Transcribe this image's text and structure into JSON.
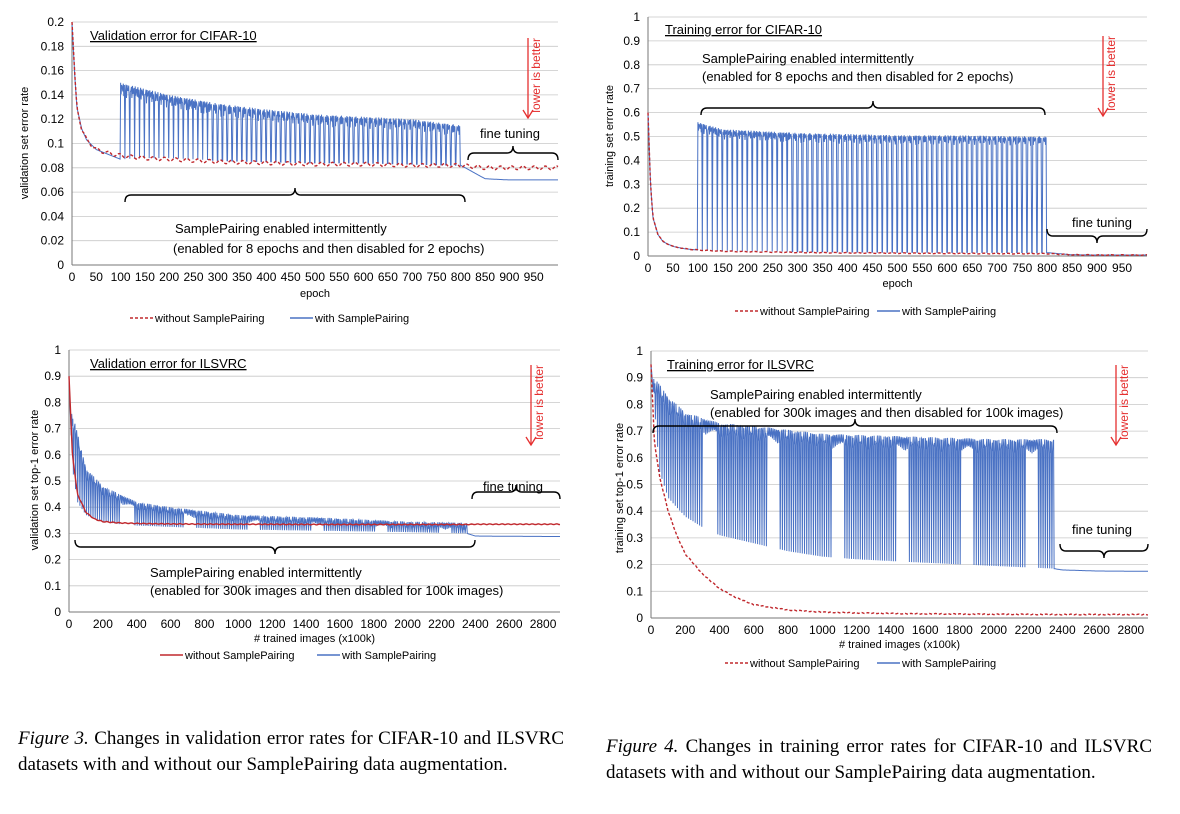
{
  "chart_data": [
    {
      "type": "line",
      "title": "Validation error for CIFAR-10",
      "xlabel": "epoch",
      "ylabel": "validation set error rate",
      "xlim": [
        0,
        1000
      ],
      "ylim": [
        0,
        0.2
      ],
      "x_ticks": [
        0,
        50,
        100,
        150,
        200,
        250,
        300,
        350,
        400,
        450,
        500,
        550,
        600,
        650,
        700,
        750,
        800,
        850,
        900,
        950
      ],
      "y_ticks": [
        0,
        0.02,
        0.04,
        0.06,
        0.08,
        0.1,
        0.12,
        0.14,
        0.16,
        0.18,
        0.2
      ],
      "series": [
        {
          "name": "without SamplePairing",
          "style": "dashed",
          "color": "#c0282d",
          "x": [
            0,
            5,
            10,
            20,
            30,
            50,
            75,
            100,
            150,
            200,
            300,
            400,
            500,
            600,
            700,
            800,
            850,
            900,
            950,
            1000
          ],
          "y": [
            0.2,
            0.16,
            0.13,
            0.112,
            0.103,
            0.095,
            0.092,
            0.09,
            0.088,
            0.087,
            0.085,
            0.084,
            0.083,
            0.083,
            0.082,
            0.082,
            0.08,
            0.08,
            0.08,
            0.08
          ]
        },
        {
          "name": "with SamplePairing",
          "style": "solid",
          "color": "#4a72c4",
          "x": [
            0,
            5,
            10,
            20,
            30,
            50,
            75,
            100,
            150,
            200,
            300,
            400,
            500,
            600,
            700,
            800,
            850,
            900,
            950,
            1000
          ],
          "y": [
            0.2,
            0.16,
            0.13,
            0.112,
            0.103,
            0.095,
            0.091,
            0.087,
            0.088,
            0.088,
            0.086,
            0.085,
            0.084,
            0.084,
            0.083,
            0.082,
            0.071,
            0.07,
            0.07,
            0.07
          ],
          "spike_peaks": {
            "x": [
              100,
              150,
              200,
              300,
              400,
              500,
              600,
              700,
              800
            ],
            "y": [
              0.15,
              0.145,
              0.14,
              0.133,
              0.128,
              0.124,
              0.122,
              0.12,
              0.115
            ]
          }
        }
      ],
      "annotations": {
        "intermittent_label": "SamplePairing enabled intermittently",
        "intermittent_detail": "(enabled for 8 epochs and then disabled for 2 epochs)",
        "fine_tuning": "fine tuning",
        "lower_is_better": "lower is better"
      },
      "grid": true,
      "legend": "bottom"
    },
    {
      "type": "line",
      "title": "Training error for CIFAR-10",
      "xlabel": "epoch",
      "ylabel": "training set error rate",
      "xlim": [
        0,
        1000
      ],
      "ylim": [
        0,
        1
      ],
      "x_ticks": [
        0,
        50,
        100,
        150,
        200,
        250,
        300,
        350,
        400,
        450,
        500,
        550,
        600,
        650,
        700,
        750,
        800,
        850,
        900,
        950
      ],
      "y_ticks": [
        0,
        0.1,
        0.2,
        0.3,
        0.4,
        0.5,
        0.6,
        0.7,
        0.8,
        0.9,
        1
      ],
      "series": [
        {
          "name": "without SamplePairing",
          "style": "dashed",
          "color": "#c0282d",
          "x": [
            0,
            5,
            10,
            20,
            30,
            50,
            75,
            100,
            150,
            200,
            300,
            400,
            500,
            600,
            700,
            800,
            850,
            900,
            950,
            1000
          ],
          "y": [
            0.6,
            0.3,
            0.16,
            0.09,
            0.06,
            0.04,
            0.03,
            0.025,
            0.02,
            0.018,
            0.015,
            0.013,
            0.012,
            0.011,
            0.01,
            0.01,
            0.005,
            0.004,
            0.004,
            0.004
          ]
        },
        {
          "name": "with SamplePairing",
          "style": "solid",
          "color": "#4a72c4",
          "x": [
            0,
            5,
            10,
            20,
            30,
            50,
            75,
            100,
            150,
            200,
            300,
            400,
            500,
            600,
            700,
            800,
            850,
            900,
            950,
            1000
          ],
          "y": [
            0.6,
            0.3,
            0.16,
            0.09,
            0.06,
            0.04,
            0.03,
            0.025,
            0.022,
            0.02,
            0.018,
            0.017,
            0.016,
            0.015,
            0.015,
            0.014,
            0.005,
            0.004,
            0.004,
            0.004
          ],
          "spike_peaks": {
            "x": [
              100,
              150,
              200,
              300,
              400,
              500,
              600,
              700,
              800
            ],
            "y": [
              0.56,
              0.53,
              0.525,
              0.515,
              0.51,
              0.505,
              0.505,
              0.502,
              0.5
            ]
          }
        }
      ],
      "annotations": {
        "intermittent_label": "SamplePairing enabled intermittently",
        "intermittent_detail": "(enabled for 8 epochs and then disabled for 2 epochs)",
        "fine_tuning": "fine tuning",
        "lower_is_better": "lower is better"
      },
      "grid": true,
      "legend": "bottom"
    },
    {
      "type": "line",
      "title": "Validation error for ILSVRC",
      "xlabel": "# trained images (x100k)",
      "ylabel": "validation set  top-1 error rate",
      "xlim": [
        0,
        2900
      ],
      "ylim": [
        0,
        1
      ],
      "x_ticks": [
        0,
        200,
        400,
        600,
        800,
        1000,
        1200,
        1400,
        1600,
        1800,
        2000,
        2200,
        2400,
        2600,
        2800
      ],
      "y_ticks": [
        0,
        0.1,
        0.2,
        0.3,
        0.4,
        0.5,
        0.6,
        0.7,
        0.8,
        0.9,
        1
      ],
      "series": [
        {
          "name": "without SamplePairing",
          "style": "solid",
          "color": "#c0282d",
          "x": [
            0,
            20,
            50,
            100,
            150,
            200,
            300,
            400,
            600,
            1000,
            1500,
            2000,
            2350,
            2400,
            2600,
            2900
          ],
          "y": [
            0.9,
            0.6,
            0.45,
            0.38,
            0.355,
            0.345,
            0.34,
            0.338,
            0.336,
            0.335,
            0.334,
            0.334,
            0.334,
            0.335,
            0.335,
            0.335
          ]
        },
        {
          "name": "with SamplePairing",
          "style": "solid",
          "color": "#4a72c4",
          "x": [
            0,
            20,
            50,
            100,
            150,
            200,
            300,
            400,
            600,
            1000,
            1500,
            2000,
            2350,
            2400,
            2600,
            2900
          ],
          "y": [
            0.9,
            0.55,
            0.42,
            0.37,
            0.355,
            0.345,
            0.335,
            0.33,
            0.325,
            0.315,
            0.31,
            0.305,
            0.3,
            0.29,
            0.289,
            0.288
          ],
          "spike_peaks": {
            "x": [
              20,
              100,
              200,
              400,
              600,
              1000,
              1500,
              2000,
              2350
            ],
            "y": [
              0.76,
              0.55,
              0.48,
              0.42,
              0.4,
              0.37,
              0.36,
              0.345,
              0.34
            ]
          }
        }
      ],
      "annotations": {
        "intermittent_label": "SamplePairing enabled intermittently",
        "intermittent_detail": "(enabled for 300k images and then disabled for 100k images)",
        "fine_tuning": "fine tuning",
        "lower_is_better": "lower is better"
      },
      "grid": true,
      "legend": "bottom"
    },
    {
      "type": "line",
      "title": "Training error for ILSVRC",
      "xlabel": "# trained images (x100k)",
      "ylabel": "training set  top-1 error rate",
      "xlim": [
        0,
        2900
      ],
      "ylim": [
        0,
        1
      ],
      "x_ticks": [
        0,
        200,
        400,
        600,
        800,
        1000,
        1200,
        1400,
        1600,
        1800,
        2000,
        2200,
        2400,
        2600,
        2800
      ],
      "y_ticks": [
        0,
        0.1,
        0.2,
        0.3,
        0.4,
        0.5,
        0.6,
        0.7,
        0.8,
        0.9,
        1
      ],
      "series": [
        {
          "name": "without SamplePairing",
          "style": "dashed",
          "color": "#c0282d",
          "x": [
            0,
            20,
            50,
            100,
            150,
            200,
            300,
            400,
            500,
            600,
            800,
            1000,
            1200,
            1500,
            2000,
            2400,
            2900
          ],
          "y": [
            0.95,
            0.66,
            0.53,
            0.4,
            0.31,
            0.24,
            0.165,
            0.11,
            0.075,
            0.05,
            0.03,
            0.022,
            0.019,
            0.016,
            0.014,
            0.013,
            0.013
          ]
        },
        {
          "name": "with SamplePairing",
          "style": "solid",
          "color": "#4a72c4",
          "x": [
            0,
            50,
            100,
            200,
            300,
            400,
            600,
            800,
            1000,
            1200,
            1500,
            2000,
            2350,
            2400,
            2600,
            2900
          ],
          "y": [
            0.95,
            0.55,
            0.45,
            0.38,
            0.34,
            0.31,
            0.28,
            0.25,
            0.23,
            0.22,
            0.21,
            0.195,
            0.185,
            0.18,
            0.176,
            0.175
          ],
          "spike_peaks": {
            "x": [
              20,
              100,
              200,
              400,
              600,
              1000,
              1500,
              2000,
              2350
            ],
            "y": [
              0.9,
              0.83,
              0.77,
              0.73,
              0.72,
              0.69,
              0.68,
              0.67,
              0.67
            ]
          }
        }
      ],
      "annotations": {
        "intermittent_label": "SamplePairing enabled intermittently",
        "intermittent_detail": "(enabled for 300k images and then disabled for 100k images)",
        "fine_tuning": "fine tuning",
        "lower_is_better": "lower is better"
      },
      "grid": true,
      "legend": "bottom"
    }
  ],
  "captions": {
    "fig3_label": "Figure 3.",
    "fig3_text": "Changes in validation error rates for CIFAR-10 and ILSVRC datasets with and without our SamplePairing data augmentation.",
    "fig4_label": "Figure 4.",
    "fig4_text": "Changes in training error rates for CIFAR-10 and ILSVRC datasets with and without our SamplePairing data augmentation."
  }
}
